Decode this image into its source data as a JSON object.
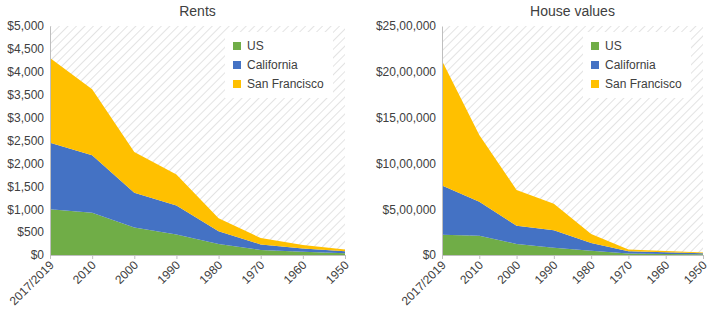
{
  "chart_data": [
    {
      "type": "area",
      "title": "Rents",
      "stacked": true,
      "legend": "upper right",
      "categories": [
        "2017/2019",
        "2010",
        "2000",
        "1990",
        "1980",
        "1970",
        "1960",
        "1950"
      ],
      "series": [
        {
          "name": "US",
          "color": "#70ad47",
          "values": [
            1000,
            920,
            600,
            450,
            240,
            110,
            70,
            40
          ]
        },
        {
          "name": "California",
          "color": "#4472c4",
          "values": [
            1450,
            1260,
            760,
            630,
            280,
            120,
            70,
            40
          ]
        },
        {
          "name": "San Francisco",
          "color": "#ffc000",
          "values": [
            1850,
            1440,
            890,
            680,
            280,
            140,
            80,
            40
          ]
        }
      ],
      "ylim": [
        0,
        5000
      ],
      "yticks": [
        {
          "value": 0,
          "label": "$0"
        },
        {
          "value": 500,
          "label": "$500"
        },
        {
          "value": 1000,
          "label": "$1,000"
        },
        {
          "value": 1500,
          "label": "$1,500"
        },
        {
          "value": 2000,
          "label": "$2,000"
        },
        {
          "value": 2500,
          "label": "$2,500"
        },
        {
          "value": 3000,
          "label": "$3,000"
        },
        {
          "value": 3500,
          "label": "$3,500"
        },
        {
          "value": 4000,
          "label": "$4,000"
        },
        {
          "value": 4500,
          "label": "$4,500"
        },
        {
          "value": 5000,
          "label": "$5,000"
        }
      ]
    },
    {
      "type": "area",
      "title": "House values",
      "stacked": true,
      "legend": "upper right",
      "categories": [
        "2017/2019",
        "2010",
        "2000",
        "1990",
        "1980",
        "1970",
        "1960",
        "1950"
      ],
      "series": [
        {
          "name": "US",
          "color": "#70ad47",
          "values": [
            220000,
            210000,
            120000,
            80000,
            47000,
            17000,
            12000,
            8000
          ]
        },
        {
          "name": "California",
          "color": "#4472c4",
          "values": [
            540000,
            370000,
            200000,
            190000,
            83000,
            23000,
            18000,
            10000
          ]
        },
        {
          "name": "San Francisco",
          "color": "#ffc000",
          "values": [
            1360000,
            730000,
            390000,
            290000,
            100000,
            20000,
            15000,
            10000
          ]
        }
      ],
      "ylim": [
        0,
        2500000
      ],
      "yticks": [
        {
          "value": 0,
          "label": "$0"
        },
        {
          "value": 500000,
          "label": "$5,00,000"
        },
        {
          "value": 1000000,
          "label": "$10,00,000"
        },
        {
          "value": 1500000,
          "label": "$15,00,000"
        },
        {
          "value": 2000000,
          "label": "$20,00,000"
        },
        {
          "value": 2500000,
          "label": "$25,00,000"
        }
      ]
    }
  ]
}
